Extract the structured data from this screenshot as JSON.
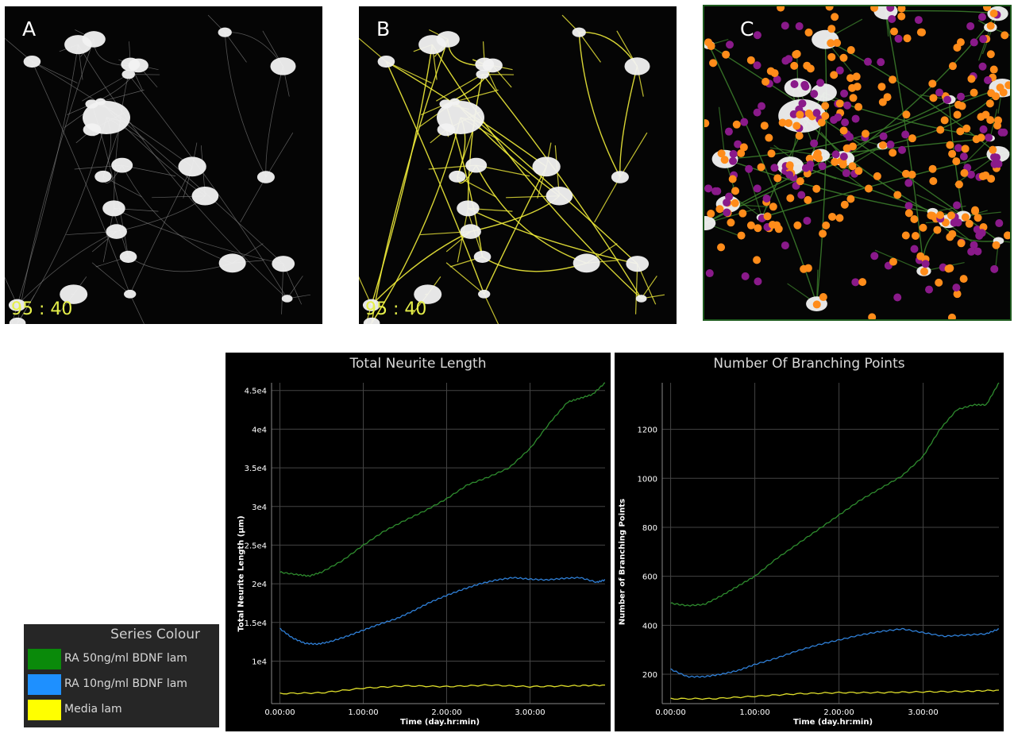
{
  "panels": [
    {
      "letter": "A",
      "timestamp": "95 : 40",
      "overlay": "none"
    },
    {
      "letter": "B",
      "timestamp": "95 : 40",
      "overlay": "yellow neurite trace"
    },
    {
      "letter": "C",
      "timestamp": "",
      "overlay": "orange and purple branch points"
    }
  ],
  "legend": {
    "title": "Series Colour",
    "items": [
      {
        "label": "RA 50ng/ml BDNF lam",
        "color": "#0a8a0a"
      },
      {
        "label": "RA 10ng/ml BDNF lam",
        "color": "#1e90ff"
      },
      {
        "label": "Media lam",
        "color": "#ffff00"
      }
    ]
  },
  "colors": {
    "green": "#2e8b2e",
    "blue": "#2f7fd6",
    "yellow": "#dede2a",
    "trace": "#f0ec3a",
    "branch_orange": "#ff8c1a",
    "branch_purple": "#8a1a8a"
  },
  "chart_data": [
    {
      "type": "line",
      "title": "Total Neurite Length",
      "xlabel": "Time (day.hr:min)",
      "ylabel": "Total Neurite Length (µm)",
      "xlim": [
        -0.1,
        3.9
      ],
      "ylim": [
        4500,
        46000
      ],
      "xticks": [
        0,
        1,
        2,
        3
      ],
      "xtick_labels": [
        "0.00:00",
        "1.00:00",
        "2.00:00",
        "3.00:00"
      ],
      "yticks": [
        10000,
        15000,
        20000,
        25000,
        30000,
        35000,
        40000,
        45000
      ],
      "ytick_labels": [
        "1e4",
        "1.5e4",
        "2e4",
        "2.5e4",
        "3e4",
        "3.5e4",
        "4e4",
        "4.5e4"
      ],
      "grid": true,
      "series": [
        {
          "name": "RA 50ng/ml BDNF lam",
          "color_key": "green",
          "x": [
            0,
            0.2,
            0.35,
            0.5,
            0.75,
            1.0,
            1.25,
            1.5,
            1.75,
            2.0,
            2.25,
            2.5,
            2.75,
            3.0,
            3.25,
            3.45,
            3.6,
            3.75,
            3.9
          ],
          "y": [
            21500,
            21200,
            21000,
            21500,
            23000,
            25000,
            26800,
            28200,
            29500,
            31000,
            32800,
            33800,
            35000,
            37500,
            41000,
            43500,
            44000,
            44500,
            46000
          ]
        },
        {
          "name": "RA 10ng/ml BDNF lam",
          "color_key": "blue",
          "x": [
            0,
            0.15,
            0.3,
            0.45,
            0.6,
            0.8,
            1.0,
            1.2,
            1.4,
            1.6,
            1.8,
            2.0,
            2.2,
            2.4,
            2.6,
            2.8,
            3.0,
            3.2,
            3.4,
            3.6,
            3.8,
            3.9
          ],
          "y": [
            14200,
            13000,
            12300,
            12200,
            12500,
            13200,
            14000,
            14800,
            15500,
            16500,
            17600,
            18500,
            19300,
            20000,
            20500,
            20800,
            20600,
            20500,
            20700,
            20800,
            20200,
            20500
          ]
        },
        {
          "name": "Media lam",
          "color_key": "yellow",
          "x": [
            0,
            0.5,
            1.0,
            1.5,
            2.0,
            2.5,
            3.0,
            3.5,
            3.9
          ],
          "y": [
            5800,
            5900,
            6500,
            6800,
            6700,
            6900,
            6700,
            6800,
            6900
          ]
        }
      ]
    },
    {
      "type": "line",
      "title": "Number Of Branching Points",
      "xlabel": "Time (day.hr:min)",
      "ylabel": "Number of Branching Points",
      "xlim": [
        -0.1,
        3.9
      ],
      "ylim": [
        80,
        1390
      ],
      "xticks": [
        0,
        1,
        2,
        3
      ],
      "xtick_labels": [
        "0.00:00",
        "1.00:00",
        "2.00:00",
        "3.00:00"
      ],
      "yticks": [
        200,
        400,
        600,
        800,
        1000,
        1200
      ],
      "ytick_labels": [
        "200",
        "400",
        "600",
        "800",
        "1000",
        "1200"
      ],
      "grid": true,
      "series": [
        {
          "name": "RA 50ng/ml BDNF lam",
          "color_key": "green",
          "x": [
            0,
            0.2,
            0.4,
            0.6,
            0.8,
            1.0,
            1.25,
            1.5,
            1.75,
            2.0,
            2.25,
            2.5,
            2.75,
            3.0,
            3.2,
            3.4,
            3.6,
            3.75,
            3.9
          ],
          "y": [
            490,
            480,
            485,
            520,
            560,
            600,
            670,
            730,
            790,
            850,
            910,
            960,
            1010,
            1090,
            1200,
            1280,
            1300,
            1300,
            1390
          ]
        },
        {
          "name": "RA 10ng/ml BDNF lam",
          "color_key": "blue",
          "x": [
            0,
            0.2,
            0.4,
            0.6,
            0.8,
            1.0,
            1.25,
            1.5,
            1.75,
            2.0,
            2.25,
            2.5,
            2.75,
            3.0,
            3.25,
            3.5,
            3.75,
            3.9
          ],
          "y": [
            220,
            190,
            190,
            200,
            215,
            240,
            265,
            295,
            320,
            340,
            360,
            375,
            385,
            370,
            355,
            360,
            365,
            385
          ]
        },
        {
          "name": "Media lam",
          "color_key": "yellow",
          "x": [
            0,
            0.5,
            1.0,
            1.5,
            2.0,
            2.5,
            3.0,
            3.5,
            3.9
          ],
          "y": [
            100,
            100,
            110,
            120,
            125,
            125,
            128,
            130,
            135
          ]
        }
      ]
    }
  ]
}
